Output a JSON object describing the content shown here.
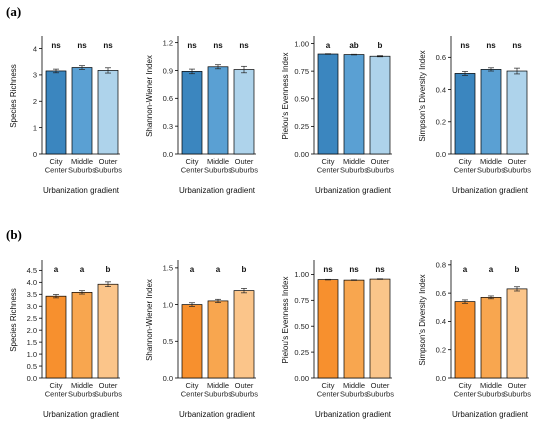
{
  "figure": {
    "panel_a_label": "(a)",
    "panel_b_label": "(b)"
  },
  "colors": {
    "blue": [
      "#3b86bf",
      "#5aa0d3",
      "#aed3eb"
    ],
    "orange": [
      "#f7902e",
      "#f8a64f",
      "#fbc58a"
    ],
    "bar_outline": "#000000",
    "axis": "#000000"
  },
  "chart_data": [
    {
      "type": "bar",
      "panel": "(a)",
      "title": "",
      "xlabel": "Urbanization gradient",
      "ylabel": "Species Richness",
      "categories": [
        "City\nCenter",
        "Middle\nSuburbs",
        "Outer\nSuburbs"
      ],
      "values": [
        3.15,
        3.28,
        3.17
      ],
      "errors": [
        0.07,
        0.07,
        0.1
      ],
      "letters": [
        "ns",
        "ns",
        "ns"
      ],
      "ylim": [
        0,
        4.4
      ],
      "yticks": [
        0,
        1,
        2,
        3,
        4
      ],
      "ytick_labels": [
        "0",
        "1",
        "2",
        "3",
        "4"
      ],
      "palette": "blue",
      "grid": false
    },
    {
      "type": "bar",
      "panel": "(a)",
      "title": "",
      "xlabel": "Urbanization gradient",
      "ylabel": "Shannon-Wiener Index",
      "categories": [
        "City\nCenter",
        "Middle\nSuburbs",
        "Outer\nSuburbs"
      ],
      "values": [
        0.89,
        0.94,
        0.91
      ],
      "errors": [
        0.025,
        0.022,
        0.035
      ],
      "letters": [
        "ns",
        "ns",
        "ns"
      ],
      "ylim": [
        0,
        1.25
      ],
      "yticks": [
        0,
        0.3,
        0.6,
        0.9,
        1.2
      ],
      "ytick_labels": [
        "0.0",
        "0.3",
        "0.6",
        "0.9",
        "1.2"
      ],
      "palette": "blue",
      "grid": false
    },
    {
      "type": "bar",
      "panel": "(a)",
      "title": "",
      "xlabel": "Urbanization gradient",
      "ylabel": "Pielou's Evenness Index",
      "categories": [
        "City\nCenter",
        "Middle\nSuburbs",
        "Outer\nSuburbs"
      ],
      "values": [
        0.905,
        0.9,
        0.885
      ],
      "errors": [
        0.003,
        0.003,
        0.005
      ],
      "letters": [
        "a",
        "ab",
        "b"
      ],
      "ylim": [
        0,
        1.05
      ],
      "yticks": [
        0,
        0.25,
        0.5,
        0.75,
        1.0
      ],
      "ytick_labels": [
        "0.00",
        "0.25",
        "0.50",
        "0.75",
        "1.00"
      ],
      "palette": "blue",
      "grid": false
    },
    {
      "type": "bar",
      "panel": "(a)",
      "title": "",
      "xlabel": "Urbanization gradient",
      "ylabel": "Simpson's Diversity Index",
      "categories": [
        "City\nCenter",
        "Middle\nSuburbs",
        "Outer\nSuburbs"
      ],
      "values": [
        0.5,
        0.525,
        0.515
      ],
      "errors": [
        0.012,
        0.01,
        0.018
      ],
      "letters": [
        "ns",
        "ns",
        "ns"
      ],
      "ylim": [
        0,
        0.72
      ],
      "yticks": [
        0,
        0.2,
        0.4,
        0.6
      ],
      "ytick_labels": [
        "0.0",
        "0.2",
        "0.4",
        "0.6"
      ],
      "palette": "blue",
      "grid": false
    },
    {
      "type": "bar",
      "panel": "(b)",
      "title": "",
      "xlabel": "Urbanization gradient",
      "ylabel": "Species Richness",
      "categories": [
        "City\nCenter",
        "Middle\nSuburbs",
        "Outer\nSuburbs"
      ],
      "values": [
        3.42,
        3.58,
        3.92
      ],
      "errors": [
        0.07,
        0.07,
        0.1
      ],
      "letters": [
        "a",
        "a",
        "b"
      ],
      "ylim": [
        0,
        4.85
      ],
      "yticks": [
        0,
        0.5,
        1,
        1.5,
        2,
        2.5,
        3,
        3.5,
        4,
        4.5
      ],
      "ytick_labels": [
        "0.0",
        "0.5",
        "1.0",
        "1.5",
        "2.0",
        "2.5",
        "3.0",
        "3.5",
        "4.0",
        "4.5"
      ],
      "palette": "orange",
      "grid": false
    },
    {
      "type": "bar",
      "panel": "(b)",
      "title": "",
      "xlabel": "Urbanization gradient",
      "ylabel": "Shannon-Wiener Index",
      "categories": [
        "City\nCenter",
        "Middle\nSuburbs",
        "Outer\nSuburbs"
      ],
      "values": [
        1.0,
        1.05,
        1.19
      ],
      "errors": [
        0.025,
        0.022,
        0.03
      ],
      "letters": [
        "a",
        "a",
        "b"
      ],
      "ylim": [
        0,
        1.58
      ],
      "yticks": [
        0,
        0.5,
        1.0,
        1.5
      ],
      "ytick_labels": [
        "0.0",
        "0.5",
        "1.0",
        "1.5"
      ],
      "palette": "orange",
      "grid": false
    },
    {
      "type": "bar",
      "panel": "(b)",
      "title": "",
      "xlabel": "Urbanization gradient",
      "ylabel": "Pielou's Evenness Index",
      "categories": [
        "City\nCenter",
        "Middle\nSuburbs",
        "Outer\nSuburbs"
      ],
      "values": [
        0.95,
        0.945,
        0.955
      ],
      "errors": [
        0.003,
        0.003,
        0.003
      ],
      "letters": [
        "ns",
        "ns",
        "ns"
      ],
      "ylim": [
        0,
        1.12
      ],
      "yticks": [
        0,
        0.25,
        0.5,
        0.75,
        1.0
      ],
      "ytick_labels": [
        "0.00",
        "0.25",
        "0.50",
        "0.75",
        "1.00"
      ],
      "palette": "orange",
      "grid": false
    },
    {
      "type": "bar",
      "panel": "(b)",
      "title": "",
      "xlabel": "Urbanization gradient",
      "ylabel": "Simpson's Diversity Index",
      "categories": [
        "City\nCenter",
        "Middle\nSuburbs",
        "Outer\nSuburbs"
      ],
      "values": [
        0.54,
        0.57,
        0.63
      ],
      "errors": [
        0.012,
        0.01,
        0.015
      ],
      "letters": [
        "a",
        "a",
        "b"
      ],
      "ylim": [
        0,
        0.82
      ],
      "yticks": [
        0,
        0.2,
        0.4,
        0.6,
        0.8
      ],
      "ytick_labels": [
        "0.0",
        "0.2",
        "0.4",
        "0.6",
        "0.8"
      ],
      "palette": "orange",
      "grid": false
    }
  ]
}
